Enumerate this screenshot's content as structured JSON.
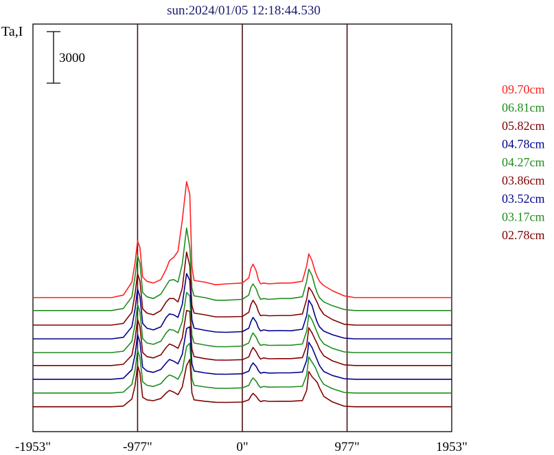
{
  "chart_data": {
    "type": "line",
    "title": "sun:2024/01/05 12:18:44.530",
    "ylabel": "Ta,I",
    "scale_bar_label": "3000",
    "scale_bar_value": 3000,
    "xlim": [
      -1953,
      1953
    ],
    "x_tick_labels": [
      "-1953\"",
      "-977\"",
      "0\"",
      "977\"",
      "1953\""
    ],
    "x_tick_values": [
      -1953,
      -977,
      0,
      977,
      1953
    ],
    "vertical_lines": [
      -977,
      0,
      977
    ],
    "colors": {
      "title": "#1a1a6e",
      "axis": "#000000",
      "marker_line": "#4a1010",
      "frame": "#000000"
    },
    "profile_x": [
      -1953,
      -1220,
      -1110,
      -1030,
      -1000,
      -977,
      -955,
      -930,
      -890,
      -830,
      -760,
      -710,
      -680,
      -640,
      -600,
      -560,
      -520,
      -490,
      -470,
      -450,
      -350,
      -250,
      -150,
      0,
      60,
      80,
      100,
      130,
      150,
      170,
      200,
      250,
      350,
      450,
      560,
      600,
      620,
      650,
      680,
      700,
      720,
      760,
      840,
      950,
      1050,
      1300,
      1953
    ],
    "series": [
      {
        "name": "09.70cm",
        "color": "#ff2020",
        "offset": 7800,
        "values": [
          0,
          0,
          150,
          900,
          2050,
          3300,
          2900,
          1200,
          950,
          850,
          1050,
          1650,
          2150,
          2350,
          2700,
          4500,
          6750,
          6000,
          1800,
          1000,
          900,
          750,
          800,
          850,
          1150,
          1700,
          1950,
          1550,
          1050,
          800,
          850,
          800,
          850,
          850,
          950,
          1850,
          2550,
          2150,
          1500,
          1200,
          950,
          700,
          400,
          100,
          0,
          0,
          0
        ]
      },
      {
        "name": "06.81cm",
        "color": "#1e8c1e",
        "offset": 7050,
        "values": [
          0,
          0,
          120,
          800,
          2000,
          3200,
          2750,
          1050,
          800,
          700,
          950,
          1450,
          1750,
          1800,
          1650,
          2700,
          4800,
          3650,
          1300,
          850,
          750,
          600,
          600,
          650,
          900,
          1350,
          1550,
          1250,
          900,
          650,
          700,
          650,
          700,
          700,
          800,
          1700,
          2400,
          2050,
          1350,
          1000,
          750,
          500,
          280,
          60,
          0,
          0,
          0
        ]
      },
      {
        "name": "05.82cm",
        "color": "#800000",
        "offset": 6200,
        "values": [
          0,
          0,
          100,
          750,
          1850,
          3000,
          2550,
          950,
          700,
          600,
          850,
          1350,
          1550,
          1550,
          1350,
          2150,
          4250,
          3450,
          1150,
          700,
          600,
          480,
          480,
          500,
          750,
          1200,
          1450,
          1150,
          780,
          550,
          580,
          540,
          560,
          560,
          650,
          1500,
          2200,
          1950,
          1550,
          1300,
          1000,
          620,
          320,
          50,
          0,
          0,
          0
        ]
      },
      {
        "name": "04.78cm",
        "color": "#00008c",
        "offset": 5400,
        "values": [
          0,
          0,
          90,
          700,
          1750,
          2900,
          2450,
          900,
          620,
          520,
          700,
          1250,
          1450,
          1400,
          1250,
          2000,
          3800,
          3400,
          1100,
          620,
          500,
          400,
          380,
          420,
          620,
          1000,
          1250,
          980,
          650,
          460,
          520,
          470,
          480,
          470,
          560,
          1350,
          2250,
          1950,
          1300,
          950,
          700,
          450,
          240,
          40,
          0,
          0,
          0
        ]
      },
      {
        "name": "04.27cm",
        "color": "#1e8c1e",
        "offset": 4600,
        "values": [
          0,
          0,
          80,
          650,
          1650,
          2800,
          2350,
          820,
          560,
          480,
          660,
          1150,
          1350,
          1300,
          1150,
          1800,
          3500,
          3300,
          1000,
          560,
          440,
          350,
          340,
          380,
          560,
          900,
          1150,
          880,
          600,
          420,
          470,
          420,
          430,
          430,
          500,
          1250,
          2200,
          1900,
          1450,
          1150,
          850,
          500,
          250,
          40,
          0,
          0,
          0
        ]
      },
      {
        "name": "03.86cm",
        "color": "#800000",
        "offset": 3850,
        "values": [
          0,
          0,
          70,
          600,
          1550,
          2700,
          2250,
          760,
          520,
          440,
          620,
          1050,
          1250,
          1150,
          1000,
          1600,
          3200,
          3150,
          950,
          520,
          400,
          320,
          310,
          340,
          500,
          820,
          1050,
          800,
          550,
          380,
          440,
          390,
          400,
          400,
          460,
          1150,
          2200,
          1900,
          1500,
          1250,
          950,
          560,
          270,
          40,
          0,
          0,
          0
        ]
      },
      {
        "name": "03.52cm",
        "color": "#00008c",
        "offset": 3050,
        "values": [
          0,
          0,
          60,
          550,
          1450,
          2600,
          2150,
          700,
          480,
          400,
          570,
          950,
          1150,
          1050,
          900,
          1450,
          2950,
          3050,
          900,
          480,
          370,
          300,
          290,
          320,
          470,
          760,
          950,
          740,
          500,
          350,
          400,
          360,
          370,
          370,
          420,
          1100,
          2150,
          1850,
          1400,
          1100,
          800,
          450,
          220,
          30,
          0,
          0,
          0
        ]
      },
      {
        "name": "03.17cm",
        "color": "#1e8c1e",
        "offset": 2250,
        "values": [
          0,
          0,
          50,
          500,
          1350,
          2500,
          2050,
          650,
          450,
          380,
          540,
          900,
          1050,
          950,
          800,
          1300,
          2700,
          2900,
          850,
          450,
          350,
          280,
          270,
          300,
          440,
          700,
          880,
          680,
          460,
          320,
          380,
          340,
          350,
          350,
          390,
          1050,
          2100,
          1800,
          1500,
          1200,
          900,
          500,
          250,
          30,
          0,
          0,
          0
        ]
      },
      {
        "name": "02.78cm",
        "color": "#800000",
        "offset": 1450,
        "values": [
          0,
          0,
          40,
          450,
          1250,
          2400,
          1950,
          550,
          400,
          350,
          480,
          800,
          950,
          850,
          700,
          1150,
          2400,
          2750,
          800,
          400,
          320,
          260,
          250,
          270,
          400,
          620,
          780,
          600,
          420,
          300,
          350,
          310,
          320,
          320,
          360,
          950,
          2050,
          1750,
          1550,
          1400,
          1100,
          600,
          280,
          30,
          0,
          0,
          0
        ]
      }
    ]
  }
}
